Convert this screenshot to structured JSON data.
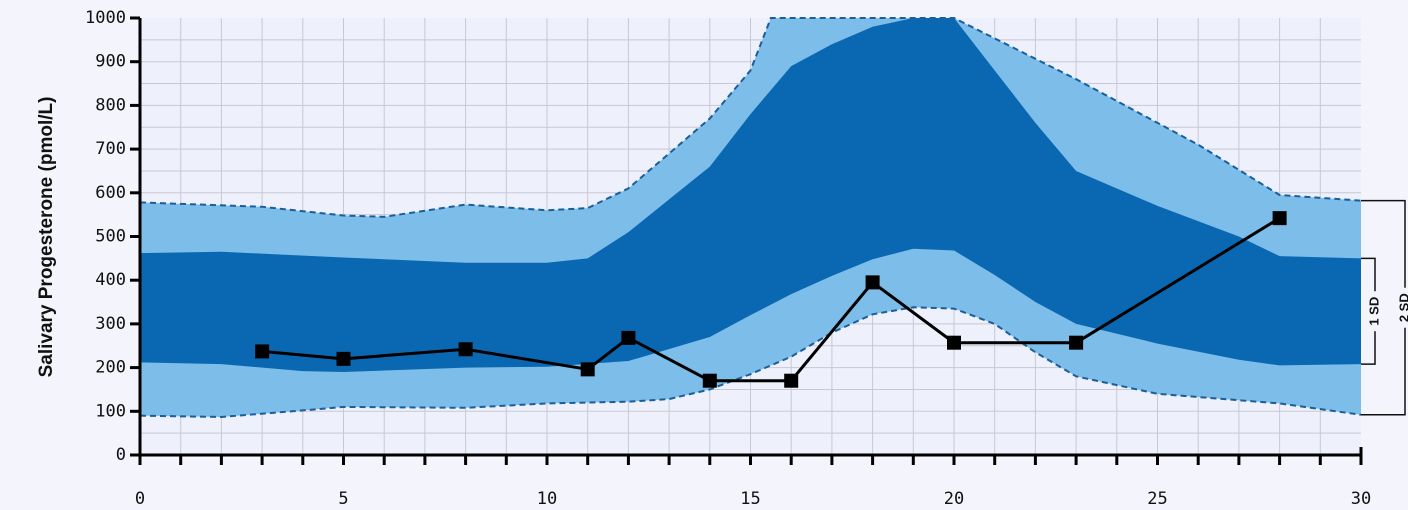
{
  "chart_data": {
    "type": "line",
    "ylabel": "Salivary Progesterone (pmol/L)",
    "xlabel": "",
    "xlim": [
      0,
      30
    ],
    "ylim": [
      0,
      1000
    ],
    "x_ticks": [
      0,
      5,
      10,
      15,
      20,
      25,
      30
    ],
    "y_ticks": [
      0,
      100,
      200,
      300,
      400,
      500,
      600,
      700,
      800,
      900,
      1000
    ],
    "grid": true,
    "bands": {
      "sd2_upper": [
        [
          0,
          578
        ],
        [
          3,
          568
        ],
        [
          5,
          548
        ],
        [
          6,
          545
        ],
        [
          8,
          573
        ],
        [
          10,
          560
        ],
        [
          11,
          565
        ],
        [
          12,
          610
        ],
        [
          13,
          690
        ],
        [
          14,
          770
        ],
        [
          15,
          880
        ],
        [
          15.5,
          1000
        ],
        [
          20,
          1000
        ],
        [
          23,
          860
        ],
        [
          26,
          710
        ],
        [
          28,
          595
        ],
        [
          30,
          582
        ]
      ],
      "sd2_lower": [
        [
          0,
          90
        ],
        [
          2,
          87
        ],
        [
          4,
          102
        ],
        [
          5,
          110
        ],
        [
          8,
          108
        ],
        [
          10,
          118
        ],
        [
          12,
          122
        ],
        [
          13,
          128
        ],
        [
          14,
          150
        ],
        [
          15,
          185
        ],
        [
          16,
          225
        ],
        [
          17,
          280
        ],
        [
          18,
          322
        ],
        [
          19,
          338
        ],
        [
          20,
          335
        ],
        [
          21,
          300
        ],
        [
          22,
          235
        ],
        [
          23,
          180
        ],
        [
          25,
          140
        ],
        [
          28,
          118
        ],
        [
          30,
          92
        ]
      ],
      "sd1_upper": [
        [
          0,
          462
        ],
        [
          2,
          465
        ],
        [
          5,
          452
        ],
        [
          8,
          440
        ],
        [
          10,
          440
        ],
        [
          11,
          450
        ],
        [
          12,
          510
        ],
        [
          13,
          585
        ],
        [
          14,
          660
        ],
        [
          15,
          780
        ],
        [
          16,
          890
        ],
        [
          17,
          940
        ],
        [
          18,
          980
        ],
        [
          19,
          1000
        ],
        [
          20,
          1000
        ],
        [
          21,
          880
        ],
        [
          22,
          760
        ],
        [
          23,
          650
        ],
        [
          25,
          570
        ],
        [
          27,
          500
        ],
        [
          28,
          455
        ],
        [
          30,
          450
        ]
      ],
      "sd1_lower": [
        [
          0,
          212
        ],
        [
          2,
          208
        ],
        [
          4,
          192
        ],
        [
          5,
          190
        ],
        [
          8,
          200
        ],
        [
          10,
          202
        ],
        [
          12,
          215
        ],
        [
          14,
          270
        ],
        [
          15,
          320
        ],
        [
          16,
          368
        ],
        [
          17,
          410
        ],
        [
          18,
          448
        ],
        [
          19,
          472
        ],
        [
          20,
          468
        ],
        [
          21,
          412
        ],
        [
          22,
          350
        ],
        [
          23,
          300
        ],
        [
          25,
          255
        ],
        [
          27,
          218
        ],
        [
          28,
          205
        ],
        [
          30,
          208
        ]
      ]
    },
    "series": [
      {
        "x": [
          3,
          5,
          8,
          11,
          12,
          14,
          16,
          18,
          20,
          23,
          28
        ],
        "y": [
          237,
          220,
          242,
          196,
          268,
          170,
          170,
          395,
          257,
          257,
          542
        ]
      }
    ],
    "sd_labels": [
      "1 SD",
      "2 SD"
    ],
    "colors": {
      "background": "#eef0fb",
      "grid": "#c8c8d6",
      "sd1_band": "#0a68b2",
      "sd2_band": "#7cbde9",
      "band_edge": "#1a5e9a",
      "line": "#000000",
      "marker": "#000000"
    }
  }
}
